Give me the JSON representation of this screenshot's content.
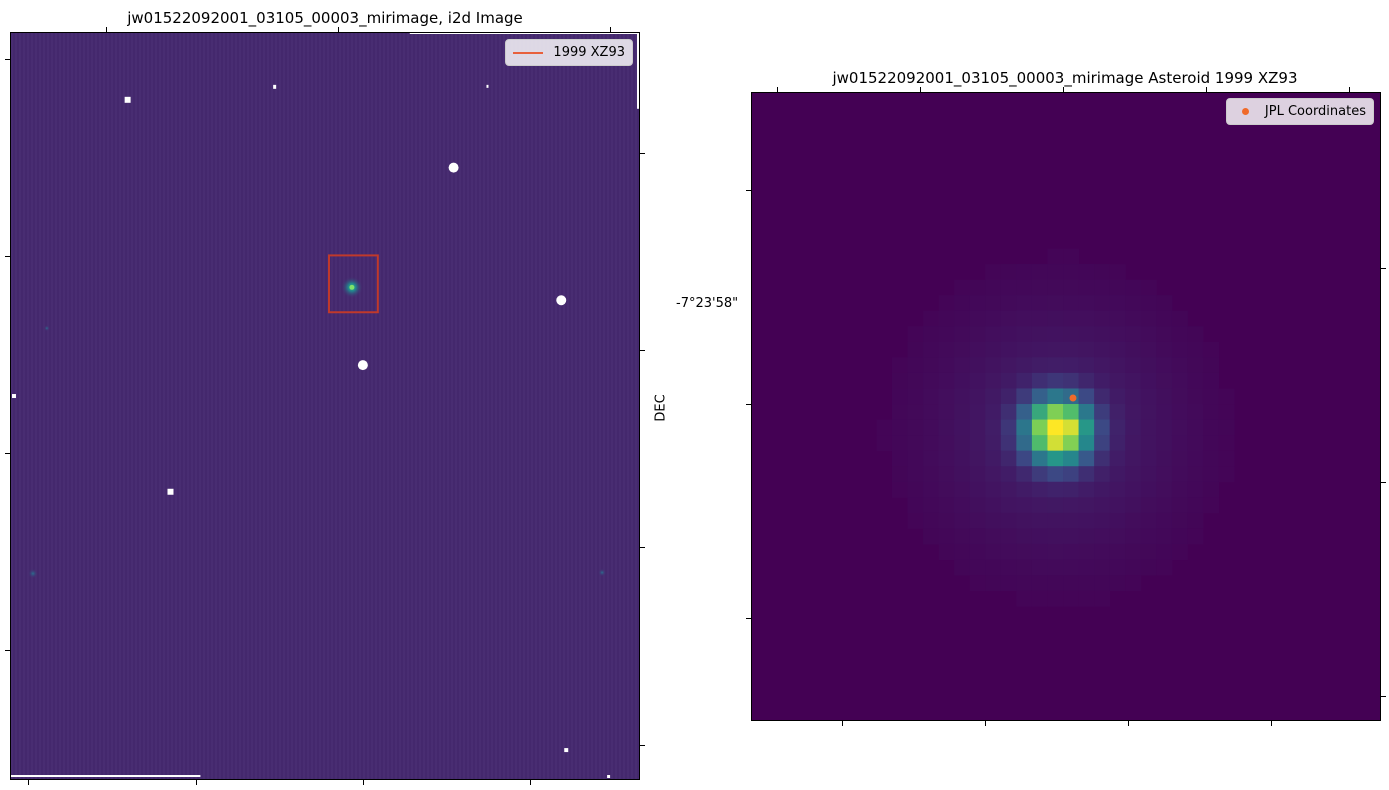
{
  "left_plot": {
    "title": "jw01522092001_03105_00003_mirimage,  i2d Image",
    "legend_label": "1999 XZ93",
    "legend_line_color": "#e8603c",
    "box_color": "#c0392b",
    "background_color": "#45296f"
  },
  "right_plot": {
    "title": "jw01522092001_03105_00003_mirimage Asteroid 1999 XZ93",
    "legend_label": "JPL Coordinates",
    "marker_color": "#f06a2a",
    "background_color": "#440154",
    "ylabel": "DEC",
    "y_tick_label": "-7°23'58\""
  }
}
